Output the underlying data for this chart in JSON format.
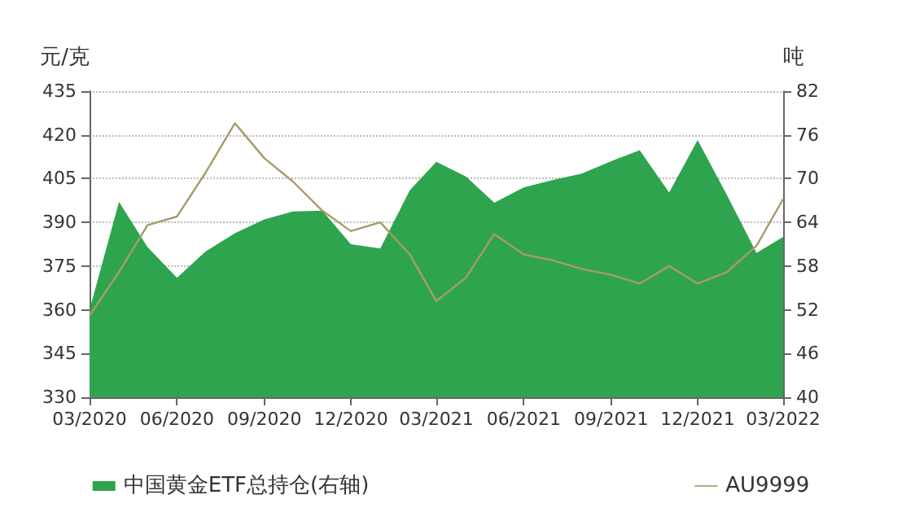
{
  "chart_data": {
    "type": "line",
    "x": [
      "2020-03",
      "2020-04",
      "2020-05",
      "2020-06",
      "2020-07",
      "2020-08",
      "2020-09",
      "2020-10",
      "2020-11",
      "2020-12",
      "2021-01",
      "2021-02",
      "2021-03",
      "2021-04",
      "2021-05",
      "2021-06",
      "2021-07",
      "2021-08",
      "2021-09",
      "2021-10",
      "2021-11",
      "2021-12",
      "2022-01",
      "2022-02",
      "2022-03"
    ],
    "series": [
      {
        "name": "中国黄金ETF总持仓(右轴)",
        "type": "area",
        "axis": "y2",
        "color": "#2ea44f",
        "values": [
          52,
          66.8,
          60.6,
          56.4,
          60,
          62.5,
          64.4,
          65.5,
          65.6,
          61,
          60.4,
          68.4,
          72.3,
          70.3,
          66.7,
          68.8,
          69.8,
          70.7,
          72.4,
          73.9,
          68.1,
          75.3,
          67.7,
          59.8,
          62
        ]
      },
      {
        "name": "AU9999",
        "color": "#a89a6e",
        "values": [
          358,
          373,
          389,
          392,
          407,
          424,
          412,
          404,
          394,
          387,
          390,
          379,
          363,
          371,
          386,
          379,
          377,
          374,
          372,
          369,
          375,
          369,
          373,
          382,
          398
        ]
      }
    ],
    "xlim": [
      "2020-03",
      "2022-03"
    ],
    "xticks": [
      {
        "value": "2020-03",
        "label": "03/2020"
      },
      {
        "value": "2020-06",
        "label": "06/2020"
      },
      {
        "value": "2020-09",
        "label": "09/2020"
      },
      {
        "value": "2020-12",
        "label": "12/2020"
      },
      {
        "value": "2021-03",
        "label": "03/2021"
      },
      {
        "value": "2021-06",
        "label": "06/2021"
      },
      {
        "value": "2021-09",
        "label": "09/2021"
      },
      {
        "value": "2021-12",
        "label": "12/2021"
      },
      {
        "value": "2022-03",
        "label": "03/2022"
      }
    ],
    "ylabel": "元/克",
    "ylim": [
      330,
      435
    ],
    "yticks": [
      330,
      345,
      360,
      375,
      390,
      405,
      420,
      435
    ],
    "y2label": "吨",
    "y2lim": [
      40,
      82
    ],
    "y2ticks": [
      40,
      46,
      52,
      58,
      64,
      70,
      76,
      82
    ],
    "grid": "y",
    "legend": "bottom",
    "marker": "none",
    "line_style": "solid"
  }
}
